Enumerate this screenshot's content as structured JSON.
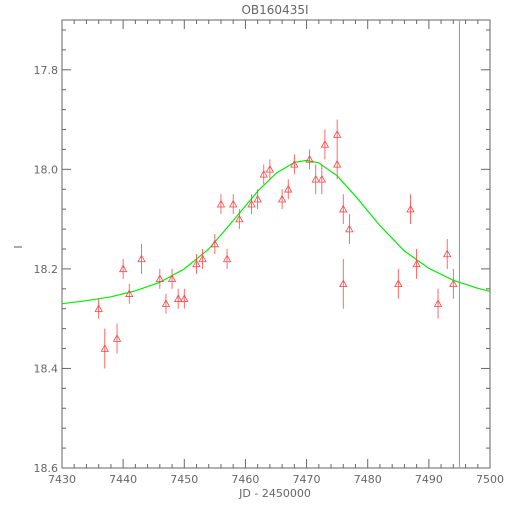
{
  "chart_data": {
    "type": "scatter",
    "title": "OB160435I",
    "xlabel": "JD - 2450000",
    "ylabel": "I",
    "xlim": [
      7430,
      7500
    ],
    "ylim": [
      18.6,
      17.7
    ],
    "y_inverted": true,
    "x_ticks": [
      "7430",
      "7440",
      "7450",
      "7460",
      "7470",
      "7480",
      "7490",
      "7500"
    ],
    "y_ticks": [
      "17.8",
      "18.0",
      "18.2",
      "18.4",
      "18.6"
    ],
    "grid": false,
    "colors": {
      "axes": "#666666",
      "points": "#ff4444",
      "model": "#00ee00",
      "marker_line": "#8888ff"
    },
    "vertical_line_x": 7495,
    "series": [
      {
        "type": "points_with_errorbars",
        "x": [
          7436,
          7437,
          7439,
          7440,
          7441,
          7443,
          7446,
          7447,
          7448,
          7449,
          7450,
          7452,
          7453,
          7455,
          7456,
          7457,
          7458,
          7459,
          7461,
          7462,
          7463,
          7464,
          7466,
          7467,
          7468,
          7470.5,
          7471.5,
          7472.5,
          7473,
          7475,
          7475,
          7476,
          7476,
          7477,
          7485,
          7487,
          7488,
          7491.5,
          7493,
          7494
        ],
        "y": [
          18.28,
          18.36,
          18.34,
          18.2,
          18.25,
          18.18,
          18.22,
          18.27,
          18.22,
          18.26,
          18.26,
          18.19,
          18.18,
          18.15,
          18.07,
          18.18,
          18.07,
          18.1,
          18.07,
          18.06,
          18.01,
          18.0,
          18.06,
          18.04,
          17.99,
          17.98,
          18.02,
          18.02,
          17.95,
          17.93,
          17.99,
          18.08,
          18.23,
          18.12,
          18.23,
          18.08,
          18.19,
          18.27,
          18.17,
          18.23
        ],
        "yerr": [
          0.02,
          0.04,
          0.03,
          0.02,
          0.02,
          0.03,
          0.02,
          0.02,
          0.02,
          0.02,
          0.02,
          0.02,
          0.02,
          0.02,
          0.02,
          0.02,
          0.02,
          0.02,
          0.02,
          0.02,
          0.02,
          0.02,
          0.02,
          0.02,
          0.02,
          0.02,
          0.03,
          0.03,
          0.03,
          0.03,
          0.03,
          0.03,
          0.05,
          0.03,
          0.03,
          0.03,
          0.03,
          0.03,
          0.03,
          0.03
        ]
      },
      {
        "type": "model_curve",
        "x": [
          7430,
          7434,
          7438,
          7442,
          7446,
          7450,
          7454,
          7458,
          7462,
          7465,
          7468,
          7470,
          7472,
          7475,
          7478,
          7482,
          7486,
          7490,
          7494,
          7498,
          7500
        ],
        "y": [
          18.27,
          18.264,
          18.256,
          18.244,
          18.227,
          18.2,
          18.16,
          18.103,
          18.044,
          18.008,
          17.986,
          17.982,
          17.987,
          18.013,
          18.054,
          18.113,
          18.164,
          18.199,
          18.223,
          18.239,
          18.245
        ]
      }
    ]
  }
}
